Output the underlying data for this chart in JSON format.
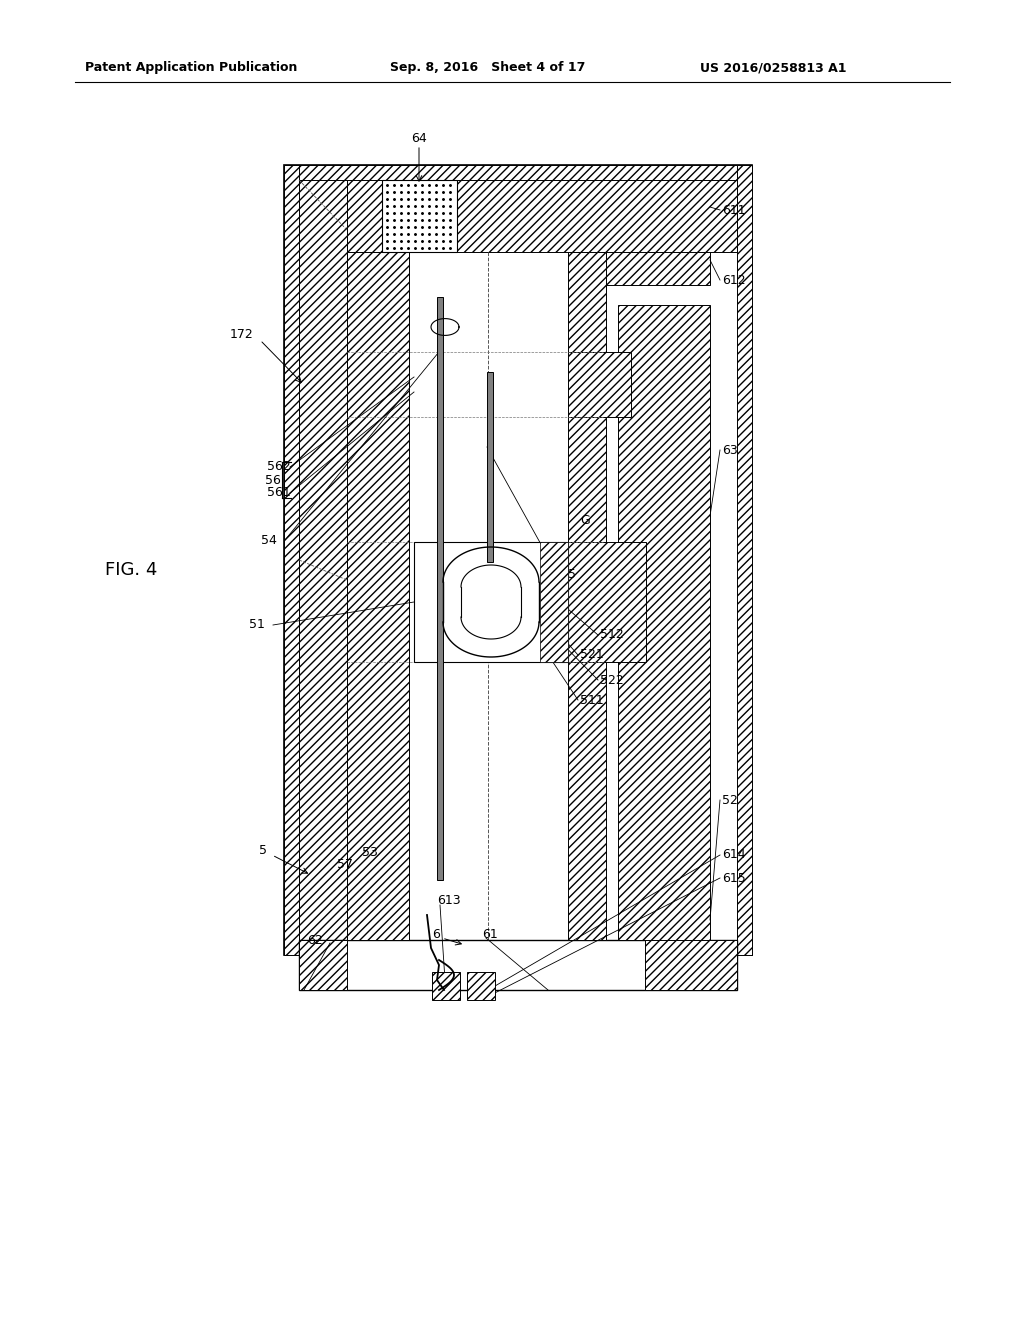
{
  "title_left": "Patent Application Publication",
  "title_mid": "Sep. 8, 2016   Sheet 4 of 17",
  "title_right": "US 2016/0258813 A1",
  "fig_label": "FIG. 4",
  "background_color": "#ffffff"
}
